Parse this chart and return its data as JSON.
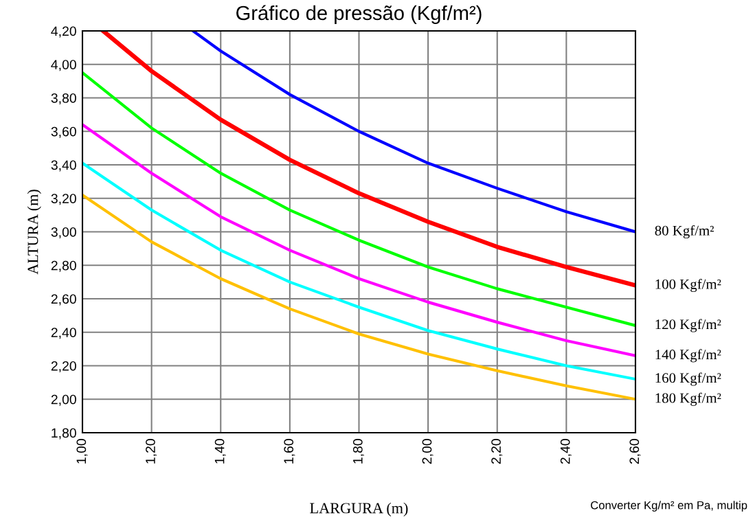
{
  "chart_data": {
    "type": "line",
    "title": "Gráfico de pressão (Kgf/m²)",
    "xlabel": "LARGURA (m)",
    "ylabel": "ALTURA (m)",
    "annotations": [
      "Converter Kg/m² em Pa, multip"
    ],
    "series": [
      {
        "name": "80 Kgf/m²",
        "color": "#0000ff",
        "x": [
          1.32,
          1.4,
          1.6,
          1.8,
          2.0,
          2.2,
          2.4,
          2.6
        ],
        "values": [
          4.2,
          4.08,
          3.82,
          3.6,
          3.41,
          3.26,
          3.12,
          3.0
        ]
      },
      {
        "name": "100 Kgf/m²",
        "color": "#ff0000",
        "x": [
          1.06,
          1.2,
          1.4,
          1.6,
          1.8,
          2.0,
          2.2,
          2.4,
          2.6
        ],
        "values": [
          4.2,
          3.96,
          3.67,
          3.43,
          3.23,
          3.06,
          2.91,
          2.79,
          2.68
        ]
      },
      {
        "name": "120 Kgf/m²",
        "color": "#00ff00",
        "x": [
          1.0,
          1.2,
          1.4,
          1.6,
          1.8,
          2.0,
          2.2,
          2.4,
          2.6
        ],
        "values": [
          3.95,
          3.62,
          3.35,
          3.13,
          2.95,
          2.79,
          2.66,
          2.55,
          2.44
        ]
      },
      {
        "name": "140 Kgf/m²",
        "color": "#ff00ff",
        "x": [
          1.0,
          1.2,
          1.4,
          1.6,
          1.8,
          2.0,
          2.2,
          2.4,
          2.6
        ],
        "values": [
          3.64,
          3.35,
          3.09,
          2.89,
          2.72,
          2.58,
          2.46,
          2.35,
          2.26
        ]
      },
      {
        "name": "160 Kgf/m²",
        "color": "#00ffff",
        "x": [
          1.0,
          1.2,
          1.4,
          1.6,
          1.8,
          2.0,
          2.2,
          2.4,
          2.6
        ],
        "values": [
          3.41,
          3.13,
          2.89,
          2.7,
          2.55,
          2.41,
          2.3,
          2.2,
          2.12
        ]
      },
      {
        "name": "180 Kgf/m²",
        "color": "#ffc000",
        "x": [
          1.0,
          1.2,
          1.4,
          1.6,
          1.8,
          2.0,
          2.2,
          2.4,
          2.6
        ],
        "values": [
          3.22,
          2.94,
          2.72,
          2.54,
          2.39,
          2.27,
          2.17,
          2.08,
          2.0
        ]
      }
    ],
    "xlim": [
      1.0,
      2.6
    ],
    "ylim": [
      1.8,
      4.2
    ],
    "xticks": [
      {
        "value": 1.0,
        "label": "1,00"
      },
      {
        "value": 1.2,
        "label": "1,20"
      },
      {
        "value": 1.4,
        "label": "1,40"
      },
      {
        "value": 1.6,
        "label": "1,60"
      },
      {
        "value": 1.8,
        "label": "1,80"
      },
      {
        "value": 2.0,
        "label": "2,00"
      },
      {
        "value": 2.2,
        "label": "2,20"
      },
      {
        "value": 2.4,
        "label": "2,40"
      },
      {
        "value": 2.6,
        "label": "2,60"
      }
    ],
    "yticks": [
      {
        "value": 1.8,
        "label": "1,80"
      },
      {
        "value": 2.0,
        "label": "2,00"
      },
      {
        "value": 2.2,
        "label": "2,20"
      },
      {
        "value": 2.4,
        "label": "2,40"
      },
      {
        "value": 2.6,
        "label": "2,60"
      },
      {
        "value": 2.8,
        "label": "2,80"
      },
      {
        "value": 3.0,
        "label": "3,00"
      },
      {
        "value": 3.2,
        "label": "3,20"
      },
      {
        "value": 3.4,
        "label": "3,40"
      },
      {
        "value": 3.6,
        "label": "3,60"
      },
      {
        "value": 3.8,
        "label": "3,80"
      },
      {
        "value": 4.0,
        "label": "4,00"
      },
      {
        "value": 4.2,
        "label": "4,20"
      }
    ],
    "grid": true,
    "legend": false,
    "marker": "none",
    "line_style": "solid"
  }
}
